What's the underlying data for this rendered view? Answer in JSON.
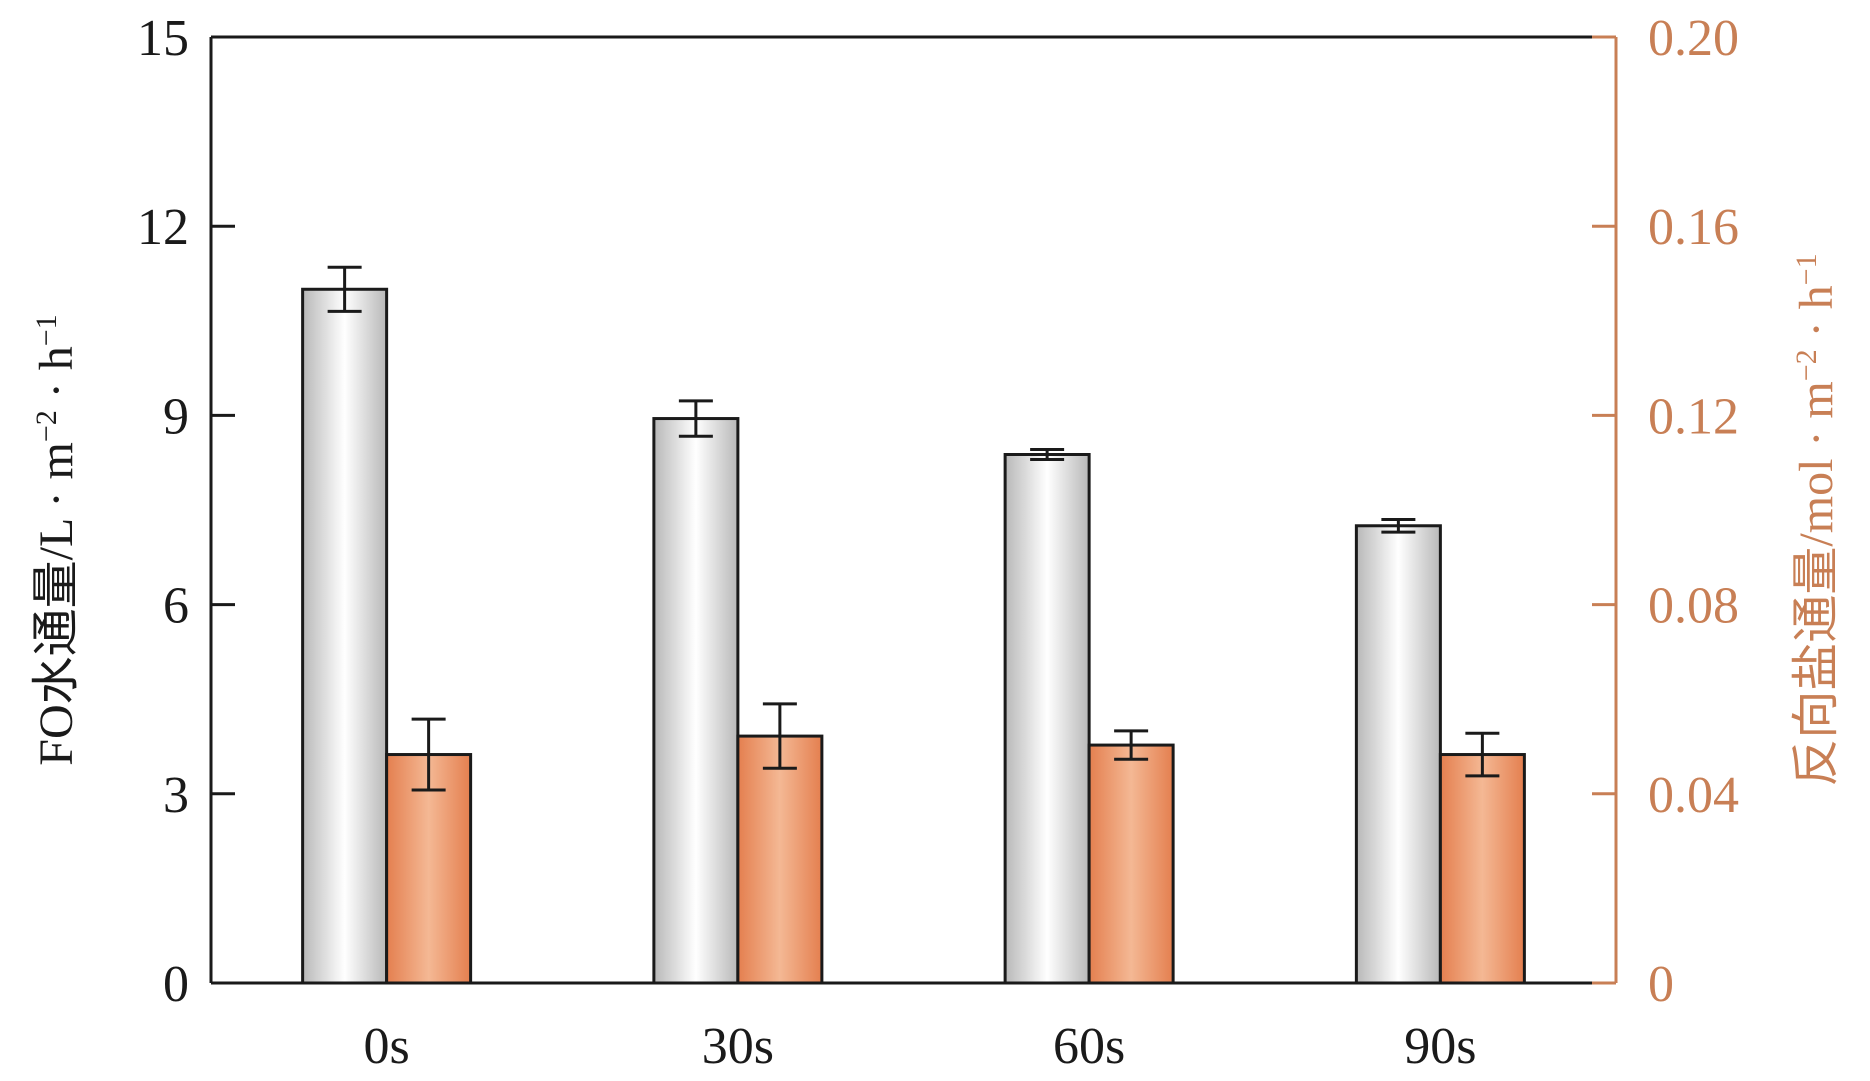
{
  "chart_data": {
    "type": "bar",
    "title": "",
    "xlabel": "",
    "categories": [
      "0s",
      "30s",
      "60s",
      "90s"
    ],
    "y_left": {
      "label_main": "FO水通量/L · m",
      "label_sup1": "−2",
      "label_mid": " · h",
      "label_sup2": "−1",
      "ylim": [
        0,
        15
      ],
      "ticks": [
        0,
        3,
        6,
        9,
        12,
        15
      ],
      "tick_labels": [
        "0",
        "3",
        "6",
        "9",
        "12",
        "15"
      ],
      "color": "#1a1a1a"
    },
    "y_right": {
      "label_main": "反向盐通量/mol · m",
      "label_sup1": "−2",
      "label_mid": " · h",
      "label_sup2": "−1",
      "ylim": [
        0,
        0.2
      ],
      "ticks": [
        0,
        0.04,
        0.08,
        0.12,
        0.16,
        0.2
      ],
      "tick_labels": [
        "0",
        "0.04",
        "0.08",
        "0.12",
        "0.16",
        "0.20"
      ],
      "color": "#c87f55"
    },
    "series": [
      {
        "axis": "left",
        "values": [
          11.0,
          8.95,
          8.38,
          7.25
        ],
        "errors": [
          0.35,
          0.28,
          0.08,
          0.1
        ],
        "color": "#c8c8c8"
      },
      {
        "axis": "right",
        "values": [
          0.0483,
          0.0522,
          0.0503,
          0.0483
        ],
        "errors": [
          0.0075,
          0.0068,
          0.003,
          0.0045
        ],
        "color": "#e8865a"
      }
    ],
    "grid": false,
    "legend": "none"
  }
}
